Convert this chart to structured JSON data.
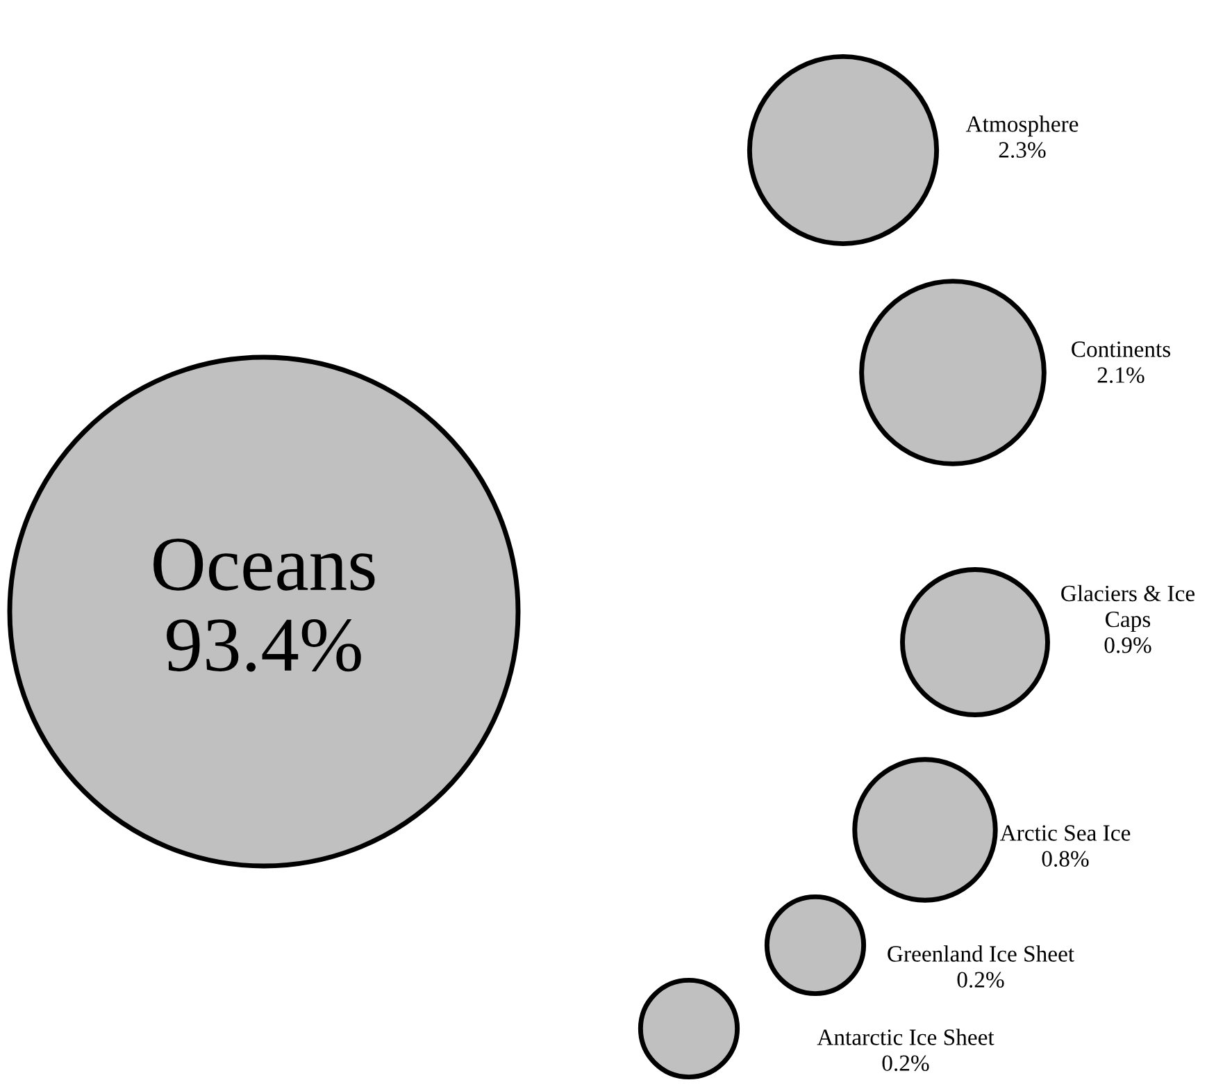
{
  "chart_data": {
    "type": "other",
    "categories": [
      "Oceans",
      "Atmosphere",
      "Continents",
      "Glaciers & Ice\nCaps",
      "Arctic Sea Ice",
      "Greenland Ice Sheet",
      "Antarctic Ice Sheet"
    ],
    "values": [
      93.4,
      2.3,
      2.1,
      0.9,
      0.8,
      0.2,
      0.2
    ],
    "value_labels": [
      "93.4%",
      "2.3%",
      "2.1%",
      "0.9%",
      "0.8%",
      "0.2%",
      "0.2%"
    ],
    "color": "#c0c0c0"
  }
}
